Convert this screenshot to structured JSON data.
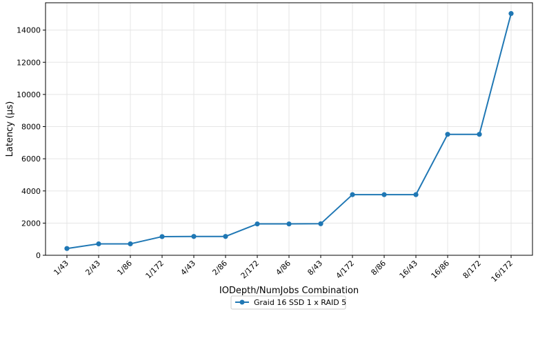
{
  "chart_data": {
    "type": "line",
    "title": "",
    "xlabel": "IODepth/NumJobs Combination",
    "ylabel": "Latency (µs)",
    "categories": [
      "1/43",
      "2/43",
      "1/86",
      "1/172",
      "4/43",
      "2/86",
      "2/172",
      "4/86",
      "8/43",
      "4/172",
      "8/86",
      "16/43",
      "16/86",
      "8/172",
      "16/172"
    ],
    "series": [
      {
        "name": "Graid 16 SSD 1 x RAID 5",
        "color": "#1f77b4",
        "values": [
          420,
          710,
          710,
          1160,
          1170,
          1170,
          1950,
          1950,
          1960,
          3770,
          3770,
          3770,
          7520,
          7520,
          15030
        ]
      }
    ],
    "ylim": [
      0,
      15700
    ],
    "yticks": [
      0,
      2000,
      4000,
      6000,
      8000,
      10000,
      12000,
      14000
    ],
    "grid": true,
    "legend_position": "bottom-center"
  }
}
